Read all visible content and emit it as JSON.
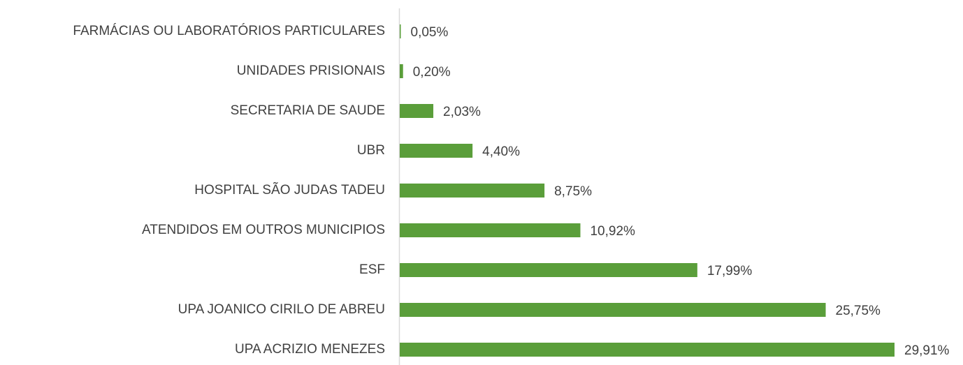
{
  "chart_data": {
    "type": "bar",
    "orientation": "horizontal",
    "categories": [
      "FARMÁCIAS OU LABORATÓRIOS PARTICULARES",
      "UNIDADES PRISIONAIS",
      "SECRETARIA DE SAUDE",
      "UBR",
      "HOSPITAL SÃO JUDAS TADEU",
      "ATENDIDOS EM OUTROS MUNICIPIOS",
      "ESF",
      "UPA JOANICO CIRILO DE ABREU",
      "UPA ACRIZIO MENEZES"
    ],
    "values": [
      0.05,
      0.2,
      2.03,
      4.4,
      8.75,
      10.92,
      17.99,
      25.75,
      29.91
    ],
    "value_labels": [
      "0,05%",
      "0,20%",
      "2,03%",
      "4,40%",
      "8,75%",
      "10,92%",
      "17,99%",
      "25,75%",
      "29,91%"
    ],
    "color": "#5a9e3a"
  }
}
